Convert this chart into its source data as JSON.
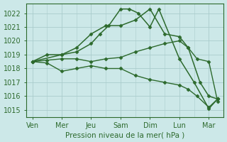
{
  "x_labels": [
    "Ven",
    "Mer",
    "Jeu",
    "Sam",
    "Dim",
    "Lun",
    "Mar"
  ],
  "x_ticks": [
    0,
    1,
    2,
    3,
    4,
    5,
    6
  ],
  "lines": [
    {
      "name": "peak_line",
      "x": [
        0,
        0.5,
        1,
        1.5,
        2,
        2.3,
        2.6,
        3,
        3.3,
        3.6,
        4,
        4.3,
        5,
        5.5,
        6,
        6.3
      ],
      "y": [
        1018.5,
        1019.0,
        1019.0,
        1019.2,
        1019.8,
        1020.5,
        1021.1,
        1022.3,
        1022.3,
        1022.0,
        1021.0,
        1022.3,
        1018.7,
        1017.0,
        1015.1,
        1015.8
      ],
      "color": "#2d6a2d",
      "marker": "D",
      "markersize": 2.5,
      "linewidth": 1.1,
      "linestyle": "-"
    },
    {
      "name": "high_line",
      "x": [
        0,
        1,
        1.5,
        2,
        2.5,
        3,
        3.5,
        4,
        4.5,
        5,
        5.3,
        5.7,
        6,
        6.3
      ],
      "y": [
        1018.5,
        1019.0,
        1019.5,
        1020.5,
        1021.1,
        1021.1,
        1021.5,
        1022.3,
        1020.5,
        1020.3,
        1019.5,
        1017.0,
        1016.0,
        1015.8
      ],
      "color": "#2d6a2d",
      "marker": "D",
      "markersize": 2.5,
      "linewidth": 1.1,
      "linestyle": "-"
    },
    {
      "name": "mid_line",
      "x": [
        0,
        0.5,
        1,
        1.5,
        2,
        2.5,
        3,
        3.5,
        4,
        4.5,
        5,
        5.3,
        5.6,
        6,
        6.3
      ],
      "y": [
        1018.5,
        1018.6,
        1018.7,
        1018.7,
        1018.5,
        1018.7,
        1018.8,
        1019.2,
        1019.5,
        1019.8,
        1020.0,
        1019.5,
        1018.7,
        1018.5,
        1015.6
      ],
      "color": "#2d6a2d",
      "marker": "D",
      "markersize": 2.5,
      "linewidth": 1.0,
      "linestyle": "-"
    },
    {
      "name": "low_line",
      "x": [
        0,
        0.5,
        1,
        1.5,
        2,
        2.5,
        3,
        3.5,
        4,
        4.5,
        5,
        5.3,
        5.6,
        6,
        6.3
      ],
      "y": [
        1018.5,
        1018.4,
        1017.8,
        1018.0,
        1018.2,
        1018.0,
        1018.0,
        1017.5,
        1017.2,
        1017.0,
        1016.8,
        1016.5,
        1016.0,
        1015.2,
        1015.8
      ],
      "color": "#2d6a2d",
      "marker": "D",
      "markersize": 2.5,
      "linewidth": 1.0,
      "linestyle": "-"
    }
  ],
  "ylim": [
    1014.5,
    1022.7
  ],
  "yticks": [
    1015,
    1016,
    1017,
    1018,
    1019,
    1020,
    1021,
    1022
  ],
  "xlim": [
    -0.2,
    6.5
  ],
  "xlabel": "Pression niveau de la mer( hPa )",
  "background_color": "#cce8e8",
  "grid_color": "#aacccc",
  "text_color": "#2d6a2d",
  "axis_color": "#2d6a2d",
  "xlabel_fontsize": 7.5,
  "tick_fontsize": 7
}
